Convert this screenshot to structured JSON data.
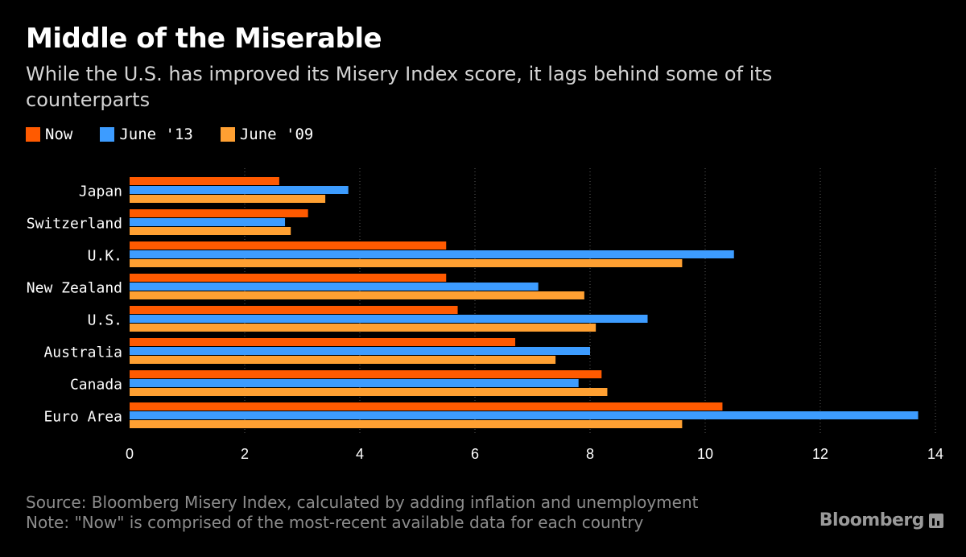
{
  "header": {
    "title": "Middle of the Miserable",
    "subtitle": "While the U.S. has improved its Misery Index score, it lags behind some of its counterparts"
  },
  "legend": [
    {
      "label": "Now",
      "color": "#ff5a00"
    },
    {
      "label": "June '13",
      "color": "#3d9cff"
    },
    {
      "label": "June '09",
      "color": "#ffa032"
    }
  ],
  "footer": {
    "source": "Source: Bloomberg Misery Index, calculated by adding inflation and unemployment",
    "note": "Note: \"Now\" is comprised of the most-recent available data for each country"
  },
  "brand": {
    "name": "Bloomberg",
    "icon": "bloomberg-chart-icon"
  },
  "chart_data": {
    "type": "bar",
    "orientation": "horizontal",
    "categories": [
      "Japan",
      "Switzerland",
      "U.K.",
      "New Zealand",
      "U.S.",
      "Australia",
      "Canada",
      "Euro Area"
    ],
    "series": [
      {
        "name": "Now",
        "color": "#ff5a00",
        "values": [
          2.6,
          3.1,
          5.5,
          5.5,
          5.7,
          6.7,
          8.2,
          10.3
        ]
      },
      {
        "name": "June '13",
        "color": "#3d9cff",
        "values": [
          3.8,
          2.7,
          10.5,
          7.1,
          9.0,
          8.0,
          7.8,
          13.7
        ]
      },
      {
        "name": "June '09",
        "color": "#ffa032",
        "values": [
          3.4,
          2.8,
          9.6,
          7.9,
          8.1,
          7.4,
          8.3,
          9.6
        ]
      }
    ],
    "xlim": [
      0,
      14
    ],
    "xticks": [
      0,
      2,
      4,
      6,
      8,
      10,
      12,
      14
    ],
    "grid": "vertical dotted",
    "legend_position": "top-left"
  }
}
